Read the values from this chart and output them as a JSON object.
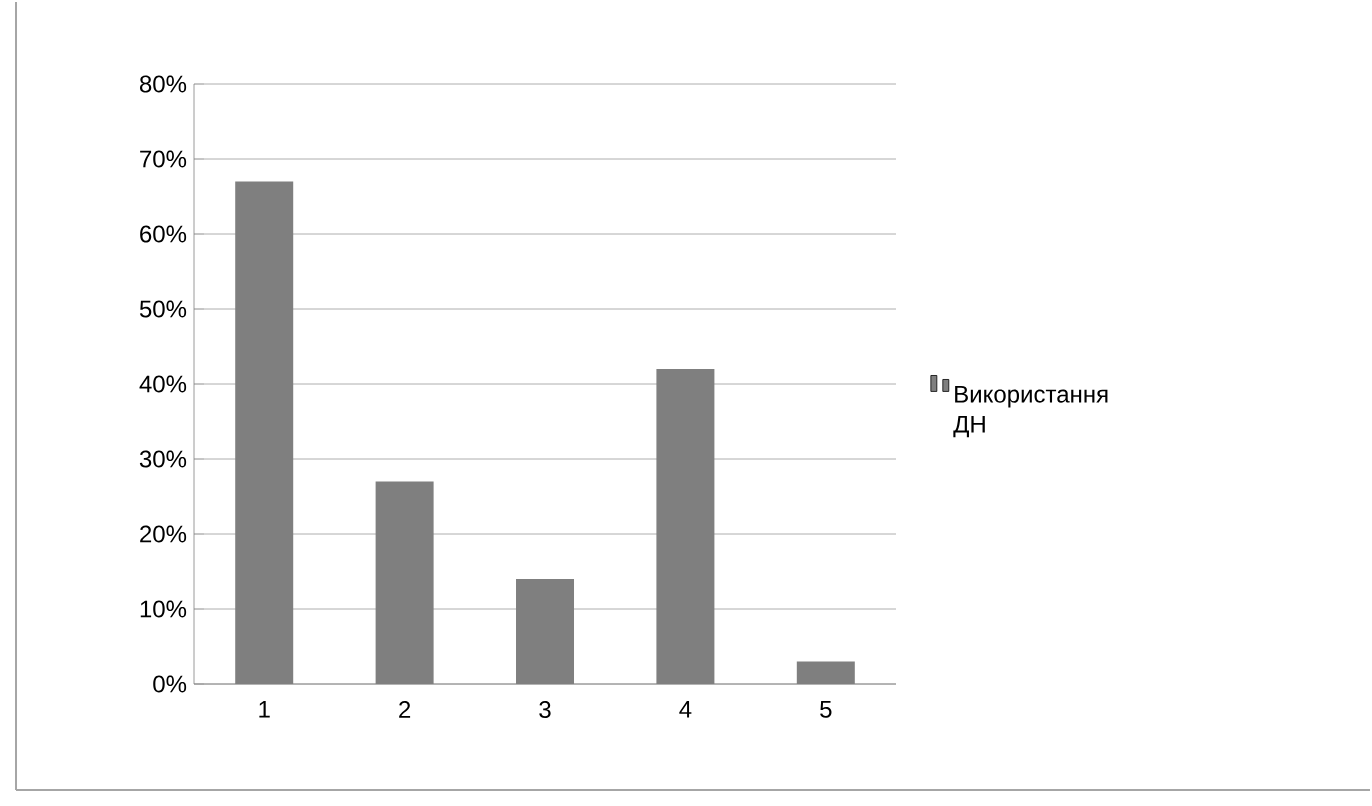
{
  "chart_data": {
    "type": "bar",
    "categories": [
      "1",
      "2",
      "3",
      "4",
      "5"
    ],
    "series": [
      {
        "name": "Використання ДН",
        "color": "#7f7f7f",
        "values": [
          67,
          27,
          14,
          42,
          3
        ]
      }
    ],
    "ylim": [
      0,
      80
    ],
    "yticks": [
      {
        "value": 0,
        "label": "0%"
      },
      {
        "value": 10,
        "label": "10%"
      },
      {
        "value": 20,
        "label": "20%"
      },
      {
        "value": 30,
        "label": "30%"
      },
      {
        "value": 40,
        "label": "40%"
      },
      {
        "value": 50,
        "label": "50%"
      },
      {
        "value": 60,
        "label": "60%"
      },
      {
        "value": 70,
        "label": "70%"
      },
      {
        "value": 80,
        "label": "80%"
      }
    ],
    "grid": "y",
    "legend": "right"
  }
}
